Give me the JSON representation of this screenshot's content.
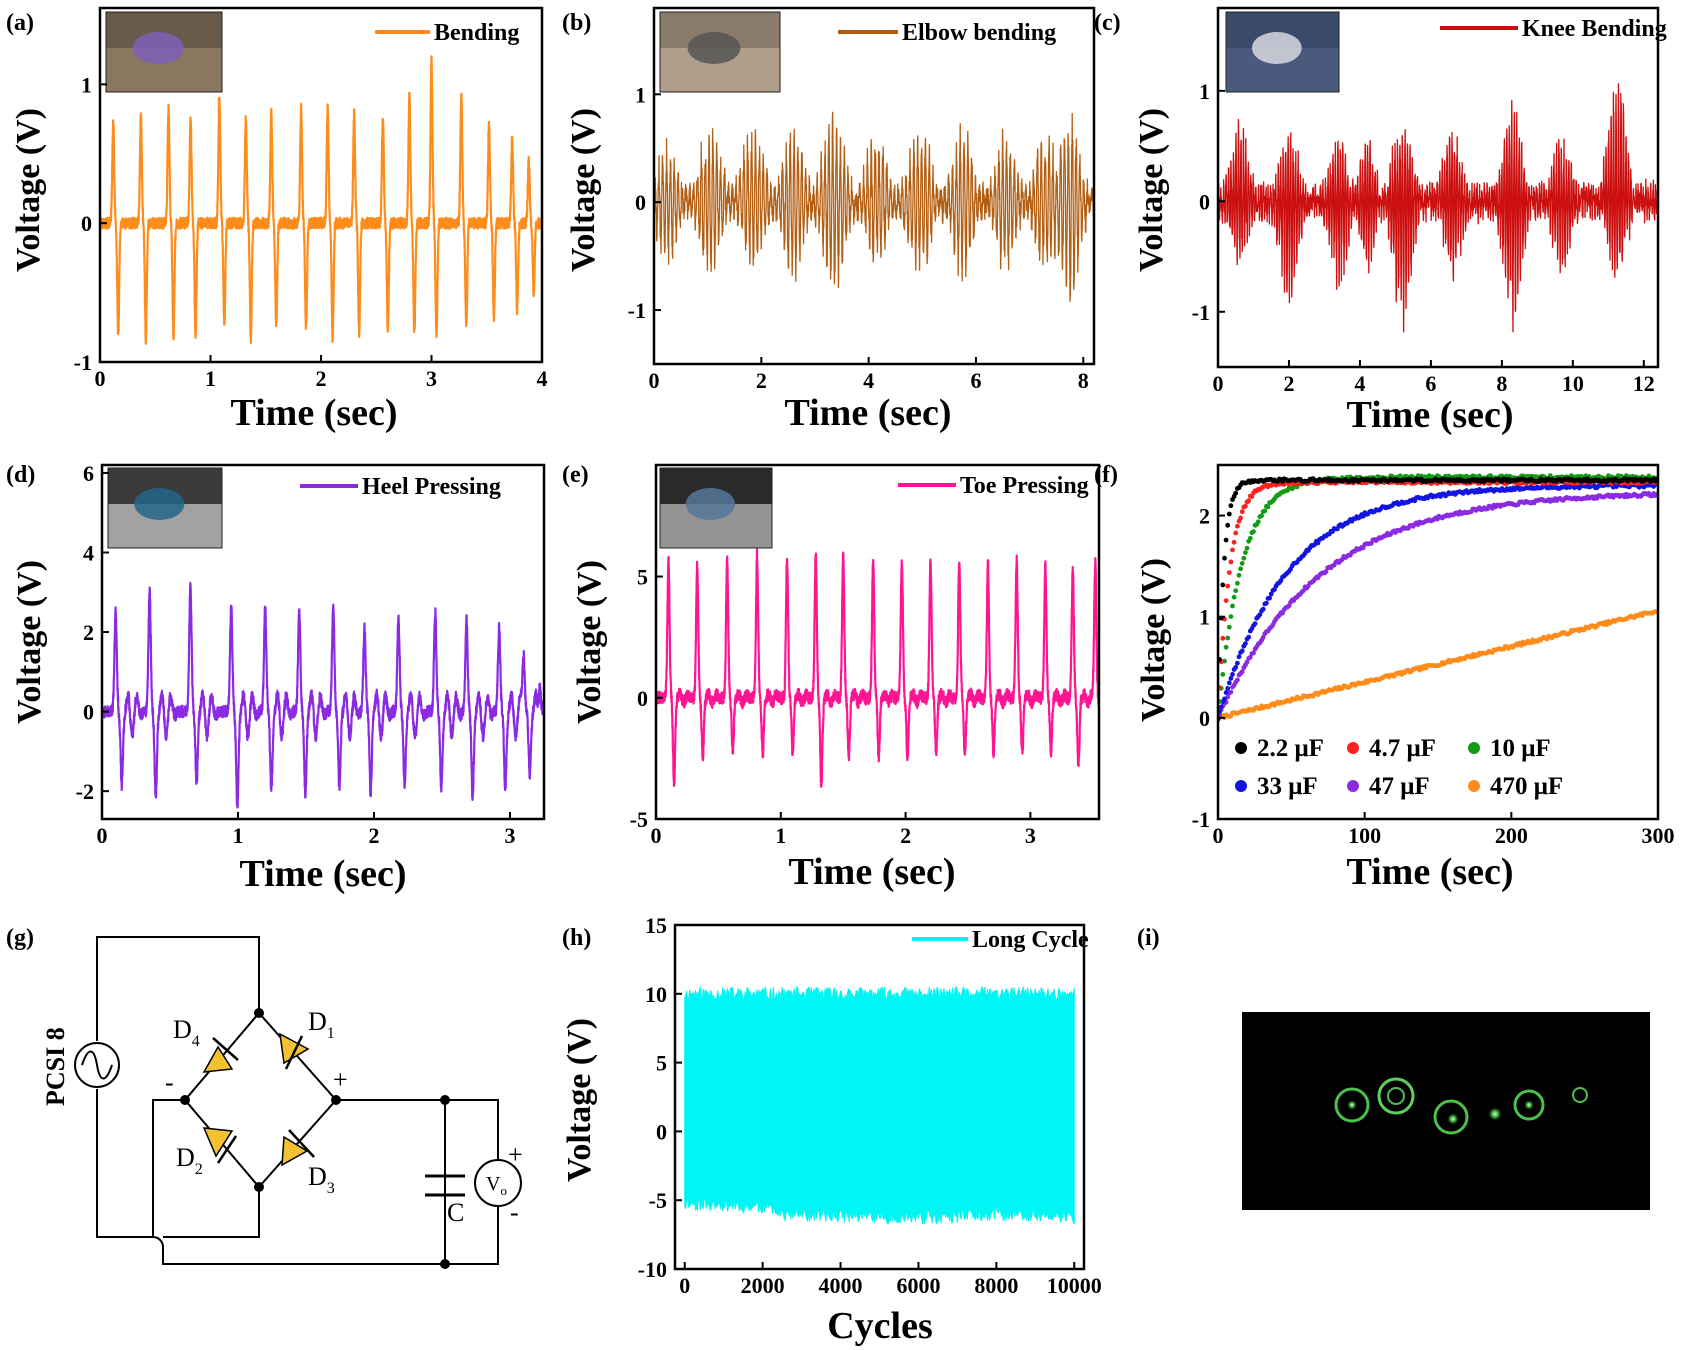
{
  "colors": {
    "a": "#FF8C1A",
    "b": "#B35F13",
    "c": "#CC1010",
    "d": "#8A2BE2",
    "e": "#FF1493",
    "h": "#00F5F5",
    "cap": [
      "#000000",
      "#FF2020",
      "#139C13",
      "#1414E0",
      "#8A2BE2",
      "#FF8C1A"
    ]
  },
  "chart_data": [
    {
      "id": "a",
      "panel_label": "(a)",
      "type": "line",
      "legend": "Bending",
      "inset_photo": true,
      "xlabel": "Time (sec)",
      "ylabel": "Voltage (V)",
      "xlim": [
        0,
        4
      ],
      "ylim": [
        -1,
        1.55
      ],
      "xticks": [
        0,
        1,
        2,
        3,
        4
      ],
      "yticks": [
        -1,
        0,
        1
      ],
      "series": [
        {
          "signal": "spikes",
          "noise": 0.04,
          "osc": 0,
          "peaks": [
            {
              "t": 0.12,
              "hi": 0.72,
              "lo": -0.8
            },
            {
              "t": 0.37,
              "hi": 0.77,
              "lo": -0.83
            },
            {
              "t": 0.62,
              "hi": 0.82,
              "lo": -0.8
            },
            {
              "t": 0.82,
              "hi": 0.75,
              "lo": -0.82
            },
            {
              "t": 1.08,
              "hi": 0.92,
              "lo": -0.74
            },
            {
              "t": 1.32,
              "hi": 0.75,
              "lo": -0.83
            },
            {
              "t": 1.55,
              "hi": 0.8,
              "lo": -0.75
            },
            {
              "t": 1.82,
              "hi": 0.82,
              "lo": -0.76
            },
            {
              "t": 2.06,
              "hi": 0.83,
              "lo": -0.83
            },
            {
              "t": 2.3,
              "hi": 0.8,
              "lo": -0.78
            },
            {
              "t": 2.56,
              "hi": 0.76,
              "lo": -0.77
            },
            {
              "t": 2.8,
              "hi": 0.92,
              "lo": -0.78
            },
            {
              "t": 3.0,
              "hi": 1.18,
              "lo": -0.8
            },
            {
              "t": 3.27,
              "hi": 0.92,
              "lo": -0.75
            },
            {
              "t": 3.52,
              "hi": 0.7,
              "lo": -0.68
            },
            {
              "t": 3.73,
              "hi": 0.6,
              "lo": -0.62
            },
            {
              "t": 3.88,
              "hi": 0.45,
              "lo": -0.5
            }
          ]
        }
      ]
    },
    {
      "id": "b",
      "panel_label": "(b)",
      "type": "line",
      "legend": "Elbow bending",
      "inset_photo": true,
      "xlabel": "Time (sec)",
      "ylabel": "Voltage (V)",
      "xlim": [
        0,
        8.2
      ],
      "ylim": [
        -1.5,
        1.8
      ],
      "xticks": [
        0,
        2,
        4,
        6,
        8
      ],
      "yticks": [
        -1,
        0,
        1
      ],
      "series": [
        {
          "signal": "bursts",
          "period": 0.072,
          "noise": 0.1,
          "peaks": [
            {
              "t": 0.25,
              "hi": 0.55,
              "lo": -0.55,
              "w": 0.5
            },
            {
              "t": 1.05,
              "hi": 0.72,
              "lo": -0.7,
              "w": 0.55
            },
            {
              "t": 1.85,
              "hi": 0.7,
              "lo": -0.62,
              "w": 0.55
            },
            {
              "t": 2.6,
              "hi": 0.78,
              "lo": -0.75,
              "w": 0.5
            },
            {
              "t": 3.35,
              "hi": 0.85,
              "lo": -0.85,
              "w": 0.55
            },
            {
              "t": 4.15,
              "hi": 0.68,
              "lo": -0.62,
              "w": 0.5
            },
            {
              "t": 4.95,
              "hi": 0.72,
              "lo": -0.72,
              "w": 0.55
            },
            {
              "t": 5.75,
              "hi": 0.72,
              "lo": -0.7,
              "w": 0.5
            },
            {
              "t": 6.55,
              "hi": 0.65,
              "lo": -0.62,
              "w": 0.5
            },
            {
              "t": 7.3,
              "hi": 0.7,
              "lo": -0.75,
              "w": 0.5
            },
            {
              "t": 7.75,
              "hi": 0.88,
              "lo": -1.0,
              "w": 0.5
            }
          ]
        }
      ]
    },
    {
      "id": "c",
      "panel_label": "(c)",
      "type": "line",
      "legend": "Knee Bending",
      "inset_photo": true,
      "xlabel": "Time (sec)",
      "ylabel": "Voltage (V)",
      "xlim": [
        0,
        12.4
      ],
      "ylim": [
        -1.5,
        1.75
      ],
      "xticks": [
        0,
        2,
        4,
        6,
        8,
        10,
        12
      ],
      "yticks": [
        -1,
        0,
        1
      ],
      "series": [
        {
          "signal": "bursts",
          "period": 0.07,
          "noise": 0.1,
          "peaks": [
            {
              "t": 0.6,
              "hi": 0.75,
              "lo": -0.6,
              "w": 0.7
            },
            {
              "t": 2.0,
              "hi": 0.68,
              "lo": -1.0,
              "w": 0.7
            },
            {
              "t": 3.4,
              "hi": 0.62,
              "lo": -0.8,
              "w": 0.7
            },
            {
              "t": 4.2,
              "hi": 0.62,
              "lo": -0.65,
              "w": 0.6
            },
            {
              "t": 5.2,
              "hi": 0.82,
              "lo": -1.18,
              "w": 0.7
            },
            {
              "t": 6.6,
              "hi": 0.72,
              "lo": -0.7,
              "w": 0.7
            },
            {
              "t": 8.3,
              "hi": 0.9,
              "lo": -1.22,
              "w": 0.7
            },
            {
              "t": 9.7,
              "hi": 0.65,
              "lo": -0.7,
              "w": 0.7
            },
            {
              "t": 11.25,
              "hi": 1.2,
              "lo": -0.75,
              "w": 0.7
            }
          ]
        }
      ]
    },
    {
      "id": "d",
      "panel_label": "(d)",
      "type": "line",
      "legend": "Heel Pressing",
      "inset_photo": true,
      "xlabel": "Time (sec)",
      "ylabel": "Voltage (V)",
      "xlim": [
        0,
        3.25
      ],
      "ylim": [
        -2.7,
        6.2
      ],
      "xticks": [
        0,
        1,
        2,
        3
      ],
      "yticks": [
        -2,
        0,
        2,
        4,
        6
      ],
      "series": [
        {
          "signal": "spikes",
          "noise": 0.15,
          "osc": 0.6,
          "peaks": [
            {
              "t": 0.1,
              "hi": 2.5,
              "lo": -1.8
            },
            {
              "t": 0.35,
              "hi": 3.0,
              "lo": -2.1
            },
            {
              "t": 0.65,
              "hi": 3.2,
              "lo": -1.7
            },
            {
              "t": 0.95,
              "hi": 2.6,
              "lo": -2.3
            },
            {
              "t": 1.2,
              "hi": 2.6,
              "lo": -1.9
            },
            {
              "t": 1.45,
              "hi": 2.5,
              "lo": -2.0
            },
            {
              "t": 1.7,
              "hi": 2.6,
              "lo": -1.8
            },
            {
              "t": 1.93,
              "hi": 2.1,
              "lo": -2.0
            },
            {
              "t": 2.18,
              "hi": 2.3,
              "lo": -1.8
            },
            {
              "t": 2.45,
              "hi": 2.5,
              "lo": -1.9
            },
            {
              "t": 2.68,
              "hi": 2.3,
              "lo": -2.1
            },
            {
              "t": 2.92,
              "hi": 2.1,
              "lo": -1.9
            },
            {
              "t": 3.1,
              "hi": 1.5,
              "lo": -1.5
            },
            {
              "t": 3.22,
              "hi": 1.2,
              "lo": -1.6
            }
          ]
        }
      ]
    },
    {
      "id": "e",
      "panel_label": "(e)",
      "type": "line",
      "legend": "Toe Pressing",
      "inset_photo": true,
      "xlabel": "Time (sec)",
      "ylabel": "Voltage (V)",
      "xlim": [
        0,
        3.55
      ],
      "ylim": [
        -5,
        9.6
      ],
      "xticks": [
        0,
        1,
        2,
        3
      ],
      "yticks": [
        -5,
        0,
        5
      ],
      "series": [
        {
          "signal": "spikes",
          "noise": 0.25,
          "osc": 0.2,
          "peaks": [
            {
              "t": 0.1,
              "hi": 5.6,
              "lo": -3.5
            },
            {
              "t": 0.33,
              "hi": 5.5,
              "lo": -2.4
            },
            {
              "t": 0.57,
              "hi": 5.6,
              "lo": -2.3
            },
            {
              "t": 0.81,
              "hi": 5.9,
              "lo": -2.3
            },
            {
              "t": 1.05,
              "hi": 5.7,
              "lo": -2.3
            },
            {
              "t": 1.28,
              "hi": 5.8,
              "lo": -3.6
            },
            {
              "t": 1.5,
              "hi": 5.9,
              "lo": -2.4
            },
            {
              "t": 1.74,
              "hi": 5.7,
              "lo": -2.4
            },
            {
              "t": 1.97,
              "hi": 5.7,
              "lo": -2.4
            },
            {
              "t": 2.2,
              "hi": 5.6,
              "lo": -2.2
            },
            {
              "t": 2.43,
              "hi": 5.6,
              "lo": -2.3
            },
            {
              "t": 2.66,
              "hi": 5.5,
              "lo": -2.3
            },
            {
              "t": 2.89,
              "hi": 5.7,
              "lo": -2.3
            },
            {
              "t": 3.12,
              "hi": 5.5,
              "lo": -2.2
            },
            {
              "t": 3.34,
              "hi": 5.3,
              "lo": -2.8
            },
            {
              "t": 3.52,
              "hi": 5.6,
              "lo": -2.8
            }
          ]
        }
      ]
    },
    {
      "id": "f",
      "panel_label": "(f)",
      "type": "scatter",
      "xlabel": "Time (sec)",
      "ylabel": "Voltage (V)",
      "xlim": [
        0,
        300
      ],
      "ylim": [
        -1,
        2.5
      ],
      "xticks": [
        0,
        100,
        200,
        300
      ],
      "yticks": [
        -1,
        0,
        1,
        2
      ],
      "series": [
        {
          "name": "2.2 μF",
          "vmax": 2.35,
          "tau": 4,
          "linear": false
        },
        {
          "name": "4.7 μF",
          "vmax": 2.33,
          "tau": 8,
          "linear": false
        },
        {
          "name": "10 μF",
          "vmax": 2.38,
          "tau": 16,
          "linear": false
        },
        {
          "name": "33 μF",
          "vmax": 2.3,
          "tau": 48,
          "linear": false
        },
        {
          "name": "47 μF",
          "vmax": 2.24,
          "tau": 70,
          "linear": false
        },
        {
          "name": "470 μF",
          "vmax": 1.06,
          "linear": true
        }
      ]
    },
    {
      "id": "h",
      "panel_label": "(h)",
      "type": "area",
      "legend": "Long Cycle",
      "xlabel": "Cycles",
      "ylabel": "Voltage (V)",
      "xlim": [
        -250,
        10250
      ],
      "ylim": [
        -10,
        15
      ],
      "xticks": [
        0,
        2000,
        4000,
        6000,
        8000,
        10000
      ],
      "yticks": [
        -10,
        -5,
        0,
        5,
        10,
        15
      ],
      "series": [
        {
          "x_range": [
            0,
            10000
          ],
          "upper": {
            "mean": 10.0,
            "jitter": 0.5
          },
          "lower": [
            [
              0,
              -5.2
            ],
            [
              2300,
              -5.5
            ],
            [
              2500,
              -6.0
            ],
            [
              6500,
              -6.3
            ],
            [
              8000,
              -6.0
            ],
            [
              10000,
              -6.3
            ]
          ]
        }
      ]
    }
  ],
  "circuit": {
    "panel_label": "(g)",
    "source_label": "PCSI 8",
    "diode_labels": [
      "D",
      "4",
      "D",
      "1",
      "D",
      "2",
      "D",
      "3"
    ],
    "minus": "-",
    "plus": "+",
    "cap_label": "C",
    "vo_main": "V",
    "vo_sub": "o",
    "out_plus": "+",
    "out_minus": "-"
  },
  "photo_i": {
    "panel_label": "(i)"
  }
}
